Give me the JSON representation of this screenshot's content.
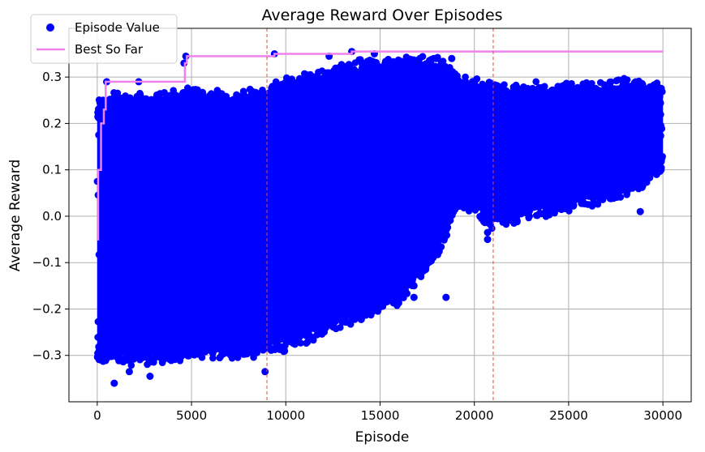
{
  "chart_data": {
    "type": "scatter",
    "title": "Average Reward Over Episodes",
    "xlabel": "Episode",
    "ylabel": "Average Reward",
    "xlim": [
      -1500,
      31500
    ],
    "ylim": [
      -0.4,
      0.405
    ],
    "xticks": [
      0,
      5000,
      10000,
      15000,
      20000,
      25000,
      30000
    ],
    "yticks": [
      -0.3,
      -0.2,
      -0.1,
      0.0,
      0.1,
      0.2,
      0.3
    ],
    "xtick_labels": [
      "0",
      "5000",
      "10000",
      "15000",
      "20000",
      "25000",
      "30000"
    ],
    "ytick_labels": [
      "−0.3",
      "−0.2",
      "−0.1",
      "0.0",
      "0.1",
      "0.2",
      "0.3"
    ],
    "grid": true,
    "legend": {
      "placement": "top-left",
      "entries": [
        {
          "label": "Episode Value",
          "marker": "circle",
          "color": "#0000ff"
        },
        {
          "label": "Best So Far",
          "marker": "line",
          "color": "#ee82ee"
        }
      ]
    },
    "series": [
      {
        "name": "Episode Value",
        "kind": "scatter",
        "color": "#0000ff",
        "band": {
          "x": [
            0,
            1000,
            3000,
            5000,
            7000,
            9000,
            10000,
            12000,
            14000,
            16000,
            17000,
            18000,
            19000,
            20000,
            20500,
            21000,
            22000,
            24000,
            26000,
            28000,
            30000
          ],
          "low": [
            -0.3,
            -0.3,
            -0.3,
            -0.29,
            -0.29,
            -0.28,
            -0.27,
            -0.24,
            -0.21,
            -0.17,
            -0.12,
            -0.08,
            0.02,
            0.03,
            0.0,
            -0.01,
            0.0,
            0.02,
            0.04,
            0.06,
            0.1
          ],
          "high": [
            0.23,
            0.25,
            0.25,
            0.26,
            0.25,
            0.26,
            0.29,
            0.3,
            0.32,
            0.32,
            0.33,
            0.33,
            0.3,
            0.28,
            0.27,
            0.27,
            0.27,
            0.27,
            0.27,
            0.28,
            0.27
          ]
        },
        "outliers": [
          {
            "x": 900,
            "y": -0.36
          },
          {
            "x": 2800,
            "y": -0.345
          },
          {
            "x": 1700,
            "y": -0.335
          },
          {
            "x": 8900,
            "y": -0.335
          },
          {
            "x": 4600,
            "y": 0.33
          },
          {
            "x": 4700,
            "y": 0.345
          },
          {
            "x": 9400,
            "y": 0.35
          },
          {
            "x": 13500,
            "y": 0.355
          },
          {
            "x": 14700,
            "y": 0.35
          },
          {
            "x": 18500,
            "y": -0.175
          },
          {
            "x": 16800,
            "y": -0.15
          },
          {
            "x": 16800,
            "y": -0.175
          },
          {
            "x": 15300,
            "y": -0.185
          },
          {
            "x": 20700,
            "y": -0.05
          },
          {
            "x": 20700,
            "y": -0.035
          },
          {
            "x": 28800,
            "y": 0.01
          },
          {
            "x": 22100,
            "y": -0.015
          },
          {
            "x": 2200,
            "y": 0.29
          },
          {
            "x": 500,
            "y": 0.29
          },
          {
            "x": 12300,
            "y": 0.345
          },
          {
            "x": 18800,
            "y": 0.34
          }
        ]
      },
      {
        "name": "Best So Far",
        "kind": "step",
        "color": "#ee82ee",
        "x": [
          0,
          50,
          200,
          350,
          450,
          4600,
          4650,
          4750,
          9400,
          13500,
          30000
        ],
        "y": [
          -0.05,
          0.1,
          0.2,
          0.23,
          0.29,
          0.29,
          0.33,
          0.345,
          0.35,
          0.355,
          0.355
        ]
      }
    ],
    "vlines": [
      {
        "x": 9000,
        "color": "#e8493d",
        "style": "dashed"
      },
      {
        "x": 21000,
        "color": "#e8493d",
        "style": "dashed"
      }
    ]
  }
}
